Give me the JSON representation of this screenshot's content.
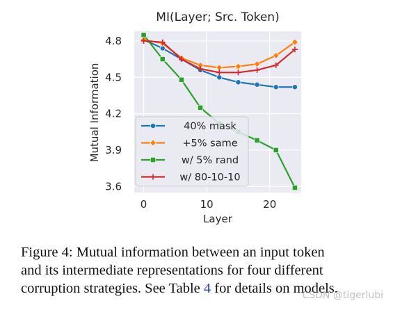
{
  "chart_data": {
    "type": "line",
    "title": "MI(Layer; Src. Token)",
    "xlabel": "Layer",
    "ylabel": "Mutual Information",
    "xlim": [
      -1.5,
      25
    ],
    "ylim": [
      3.55,
      4.88
    ],
    "xticks": [
      0,
      10,
      20
    ],
    "yticks": [
      3.6,
      3.9,
      4.2,
      4.5,
      4.8
    ],
    "ytick_labels": [
      "3.6",
      "3.9",
      "4.2",
      "4.5",
      "4.8"
    ],
    "grid": true,
    "legend_position": "lower-left",
    "series": [
      {
        "name": "40% mask",
        "color": "#1f77b4",
        "marker": "circle",
        "x": [
          0,
          3,
          6,
          9,
          12,
          15,
          18,
          21,
          24
        ],
        "y": [
          4.81,
          4.74,
          4.65,
          4.56,
          4.5,
          4.46,
          4.44,
          4.42,
          4.42
        ]
      },
      {
        "name": "+5% same",
        "color": "#ff7f0e",
        "marker": "diamond",
        "x": [
          0,
          3,
          6,
          9,
          12,
          15,
          18,
          21,
          24
        ],
        "y": [
          4.81,
          4.78,
          4.66,
          4.6,
          4.58,
          4.59,
          4.61,
          4.68,
          4.79
        ]
      },
      {
        "name": "w/ 5% rand",
        "color": "#2ca02c",
        "marker": "square",
        "x": [
          0,
          3,
          6,
          9,
          12,
          15,
          18,
          21,
          24
        ],
        "y": [
          4.85,
          4.65,
          4.48,
          4.25,
          4.12,
          4.05,
          3.98,
          3.9,
          3.59
        ]
      },
      {
        "name": "w/ 80-10-10",
        "color": "#d62728",
        "marker": "plus",
        "x": [
          0,
          3,
          6,
          9,
          12,
          15,
          18,
          21,
          24
        ],
        "y": [
          4.8,
          4.79,
          4.65,
          4.57,
          4.54,
          4.54,
          4.56,
          4.6,
          4.73
        ]
      }
    ]
  },
  "caption": {
    "line1": "Figure 4: Mutual information between an input token",
    "line2": "and its intermediate representations for four different",
    "line3_before": "corruption strategies. See Table ",
    "line3_ref": "4",
    "line3_after": " for details on models."
  },
  "watermark": "CSDN @tigerlubi"
}
